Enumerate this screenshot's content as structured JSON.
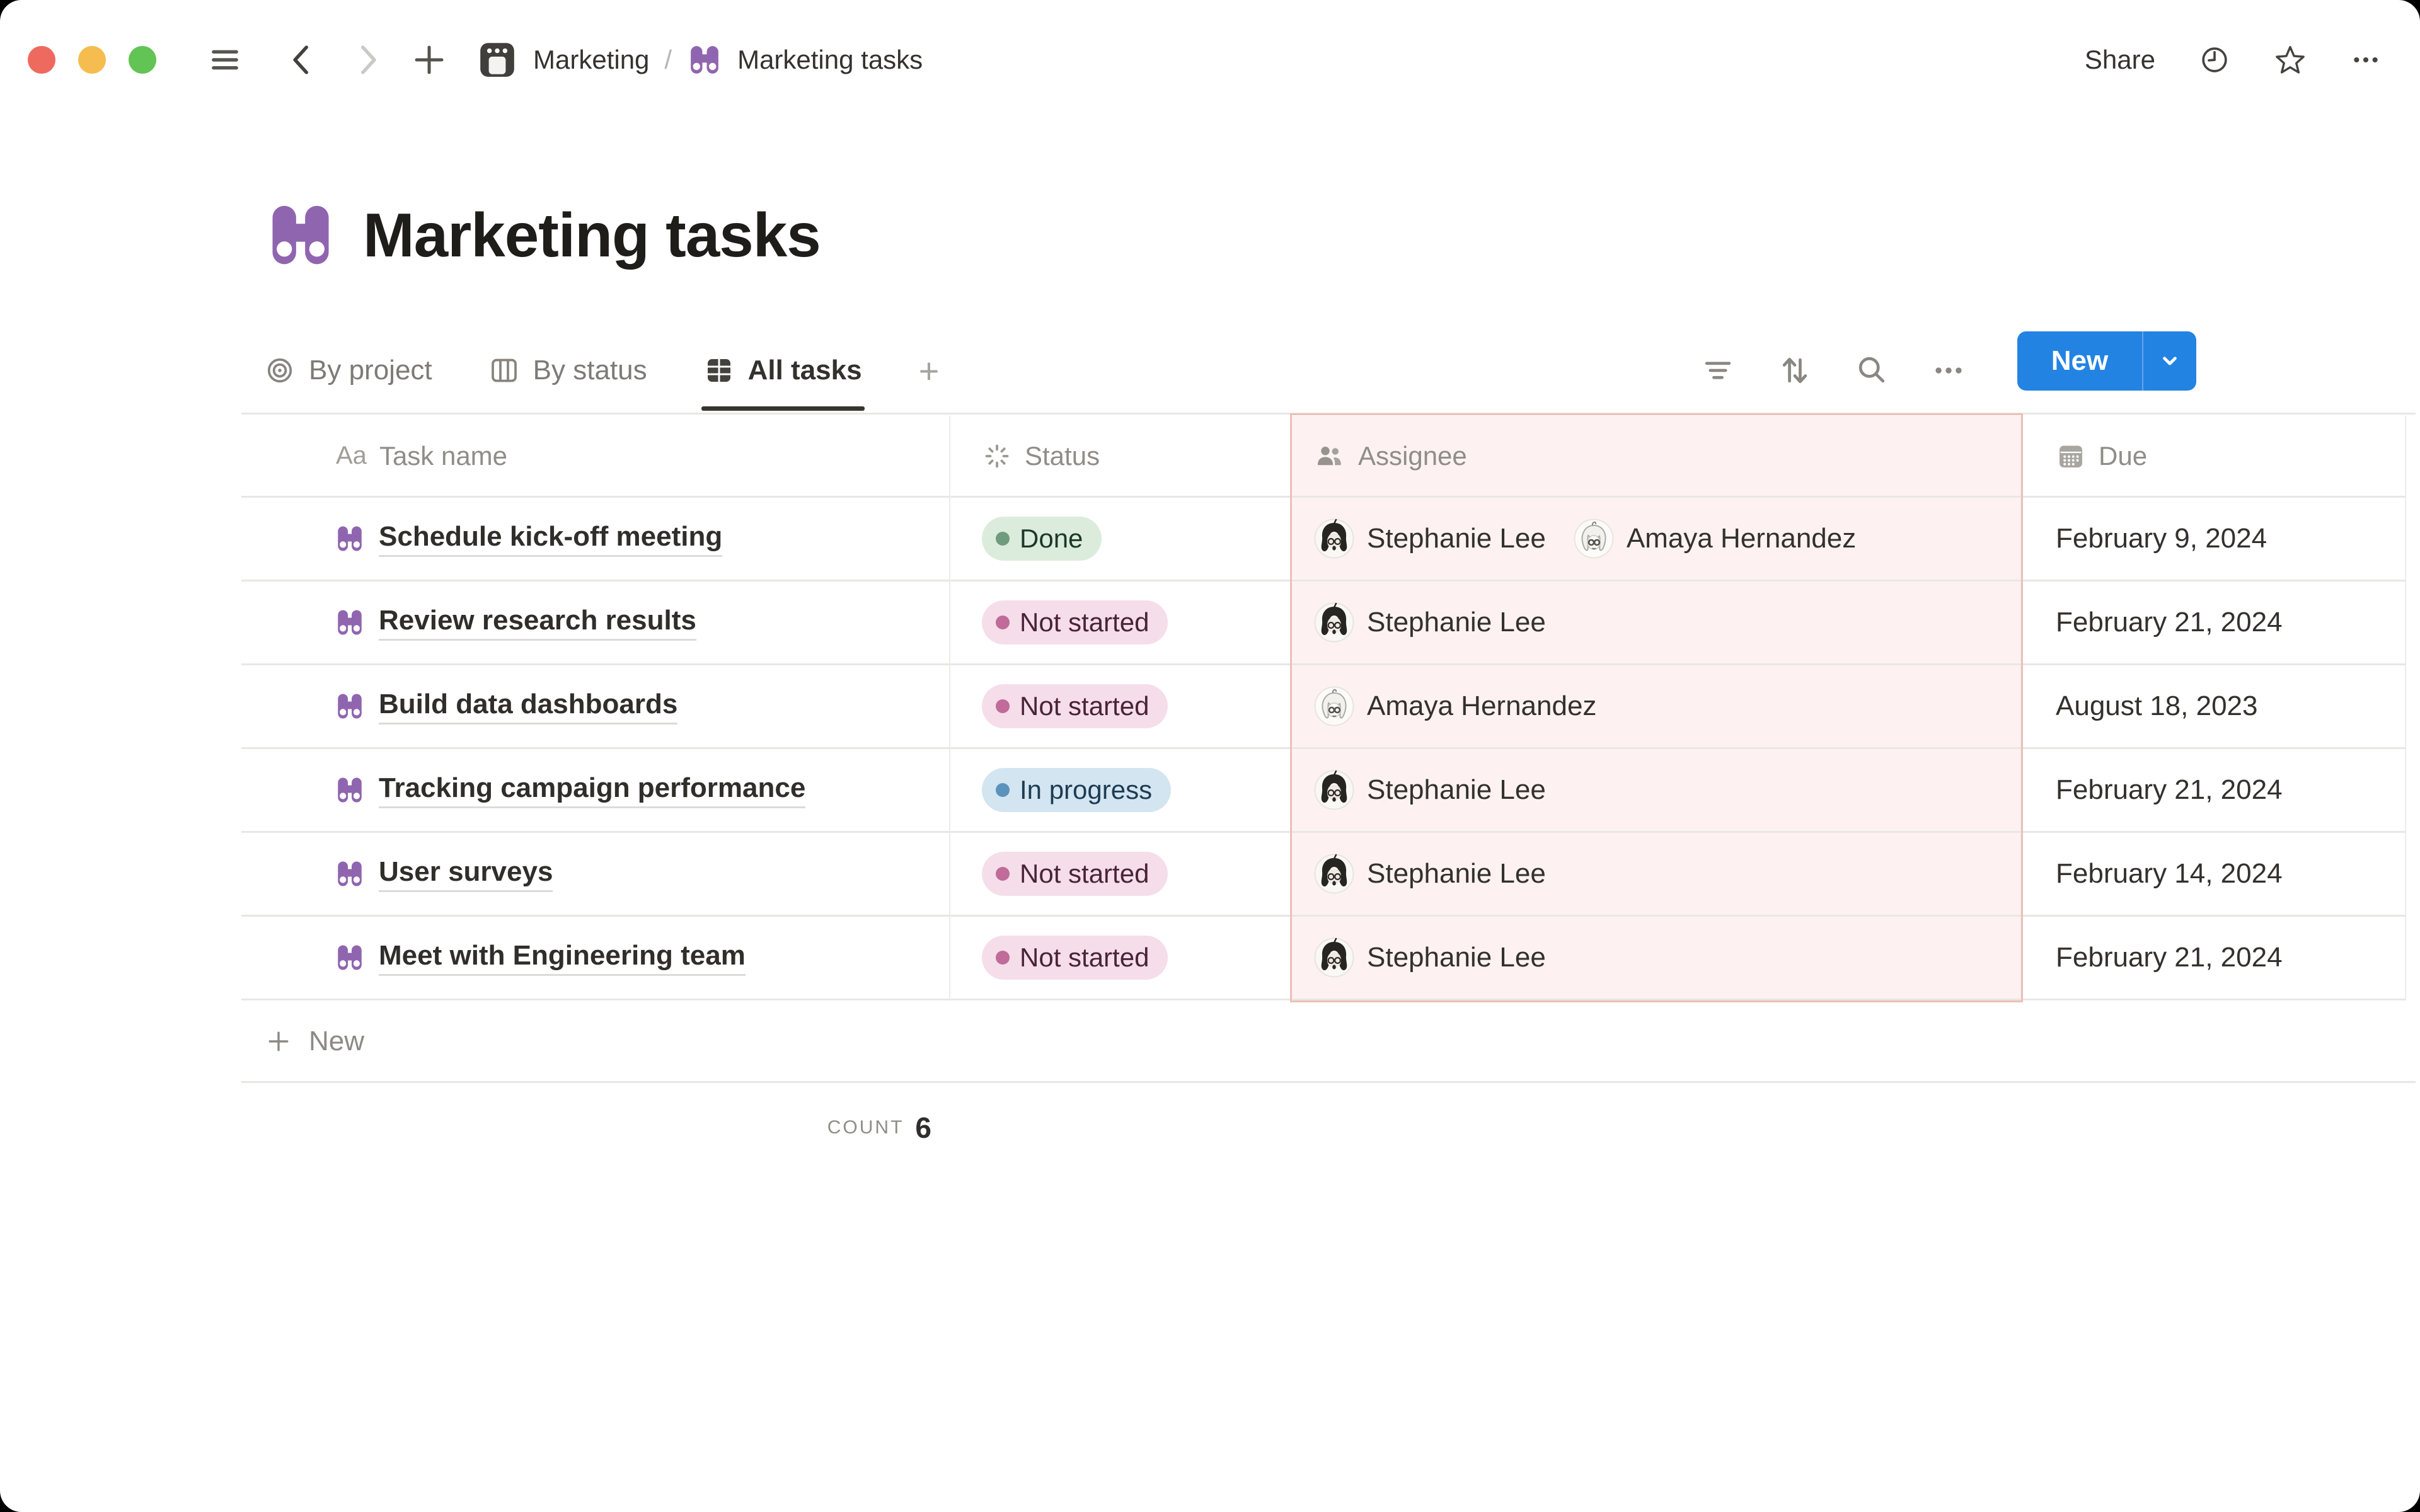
{
  "topbar": {
    "breadcrumb": {
      "parent": "Marketing",
      "separator": "/",
      "current": "Marketing tasks"
    },
    "share_label": "Share"
  },
  "page": {
    "title": "Marketing tasks",
    "icon": "binoculars-icon"
  },
  "views": {
    "tabs": [
      {
        "label": "By project",
        "icon": "target-icon",
        "active": false
      },
      {
        "label": "By status",
        "icon": "board-icon",
        "active": false
      },
      {
        "label": "All tasks",
        "icon": "table-icon",
        "active": true
      }
    ],
    "add_label": "+"
  },
  "toolbar": {
    "new_label": "New"
  },
  "table": {
    "columns": [
      {
        "label": "Task name",
        "icon": "Aa-icon"
      },
      {
        "label": "Status",
        "icon": "status-burst-icon"
      },
      {
        "label": "Assignee",
        "icon": "people-icon",
        "selected": true
      },
      {
        "label": "Due",
        "icon": "calendar-icon"
      }
    ],
    "rows": [
      {
        "task": "Schedule kick-off meeting",
        "status": {
          "label": "Done",
          "key": "done"
        },
        "assignees": [
          {
            "name": "Stephanie Lee",
            "avatar": "stephanie-lee"
          },
          {
            "name": "Amaya Hernandez",
            "avatar": "amaya-hernandez"
          }
        ],
        "due": "February 9, 2024"
      },
      {
        "task": "Review research results",
        "status": {
          "label": "Not started",
          "key": "not_started"
        },
        "assignees": [
          {
            "name": "Stephanie Lee",
            "avatar": "stephanie-lee"
          }
        ],
        "due": "February 21, 2024"
      },
      {
        "task": "Build data dashboards",
        "status": {
          "label": "Not started",
          "key": "not_started"
        },
        "assignees": [
          {
            "name": "Amaya Hernandez",
            "avatar": "amaya-hernandez"
          }
        ],
        "due": "August 18, 2023"
      },
      {
        "task": "Tracking campaign performance",
        "status": {
          "label": "In progress",
          "key": "in_progress"
        },
        "assignees": [
          {
            "name": "Stephanie Lee",
            "avatar": "stephanie-lee"
          }
        ],
        "due": "February 21, 2024"
      },
      {
        "task": "User surveys",
        "status": {
          "label": "Not started",
          "key": "not_started"
        },
        "assignees": [
          {
            "name": "Stephanie Lee",
            "avatar": "stephanie-lee"
          }
        ],
        "due": "February 14, 2024"
      },
      {
        "task": "Meet with Engineering team",
        "status": {
          "label": "Not started",
          "key": "not_started"
        },
        "assignees": [
          {
            "name": "Stephanie Lee",
            "avatar": "stephanie-lee"
          }
        ],
        "due": "February 21, 2024"
      }
    ],
    "new_row_label": "New",
    "footer": {
      "count_label": "COUNT",
      "count_value": "6"
    }
  },
  "colors": {
    "accent_blue": "#2383e2",
    "icon_purple": "#9065b0",
    "selection_border": "#edbfb8",
    "selection_bg": "#fdf2f1",
    "traffic_lights": [
      "#ee6a5f",
      "#f5bd4f",
      "#61c454"
    ],
    "status": {
      "done": {
        "bg": "#dcecdc",
        "dot": "#6f9c7e",
        "text": "#1c3829"
      },
      "not_started": {
        "bg": "#f5dee9",
        "dot": "#c06b99",
        "text": "#4a2339"
      },
      "in_progress": {
        "bg": "#d3e5f0",
        "dot": "#5c93bd",
        "text": "#1d3c54"
      }
    }
  }
}
